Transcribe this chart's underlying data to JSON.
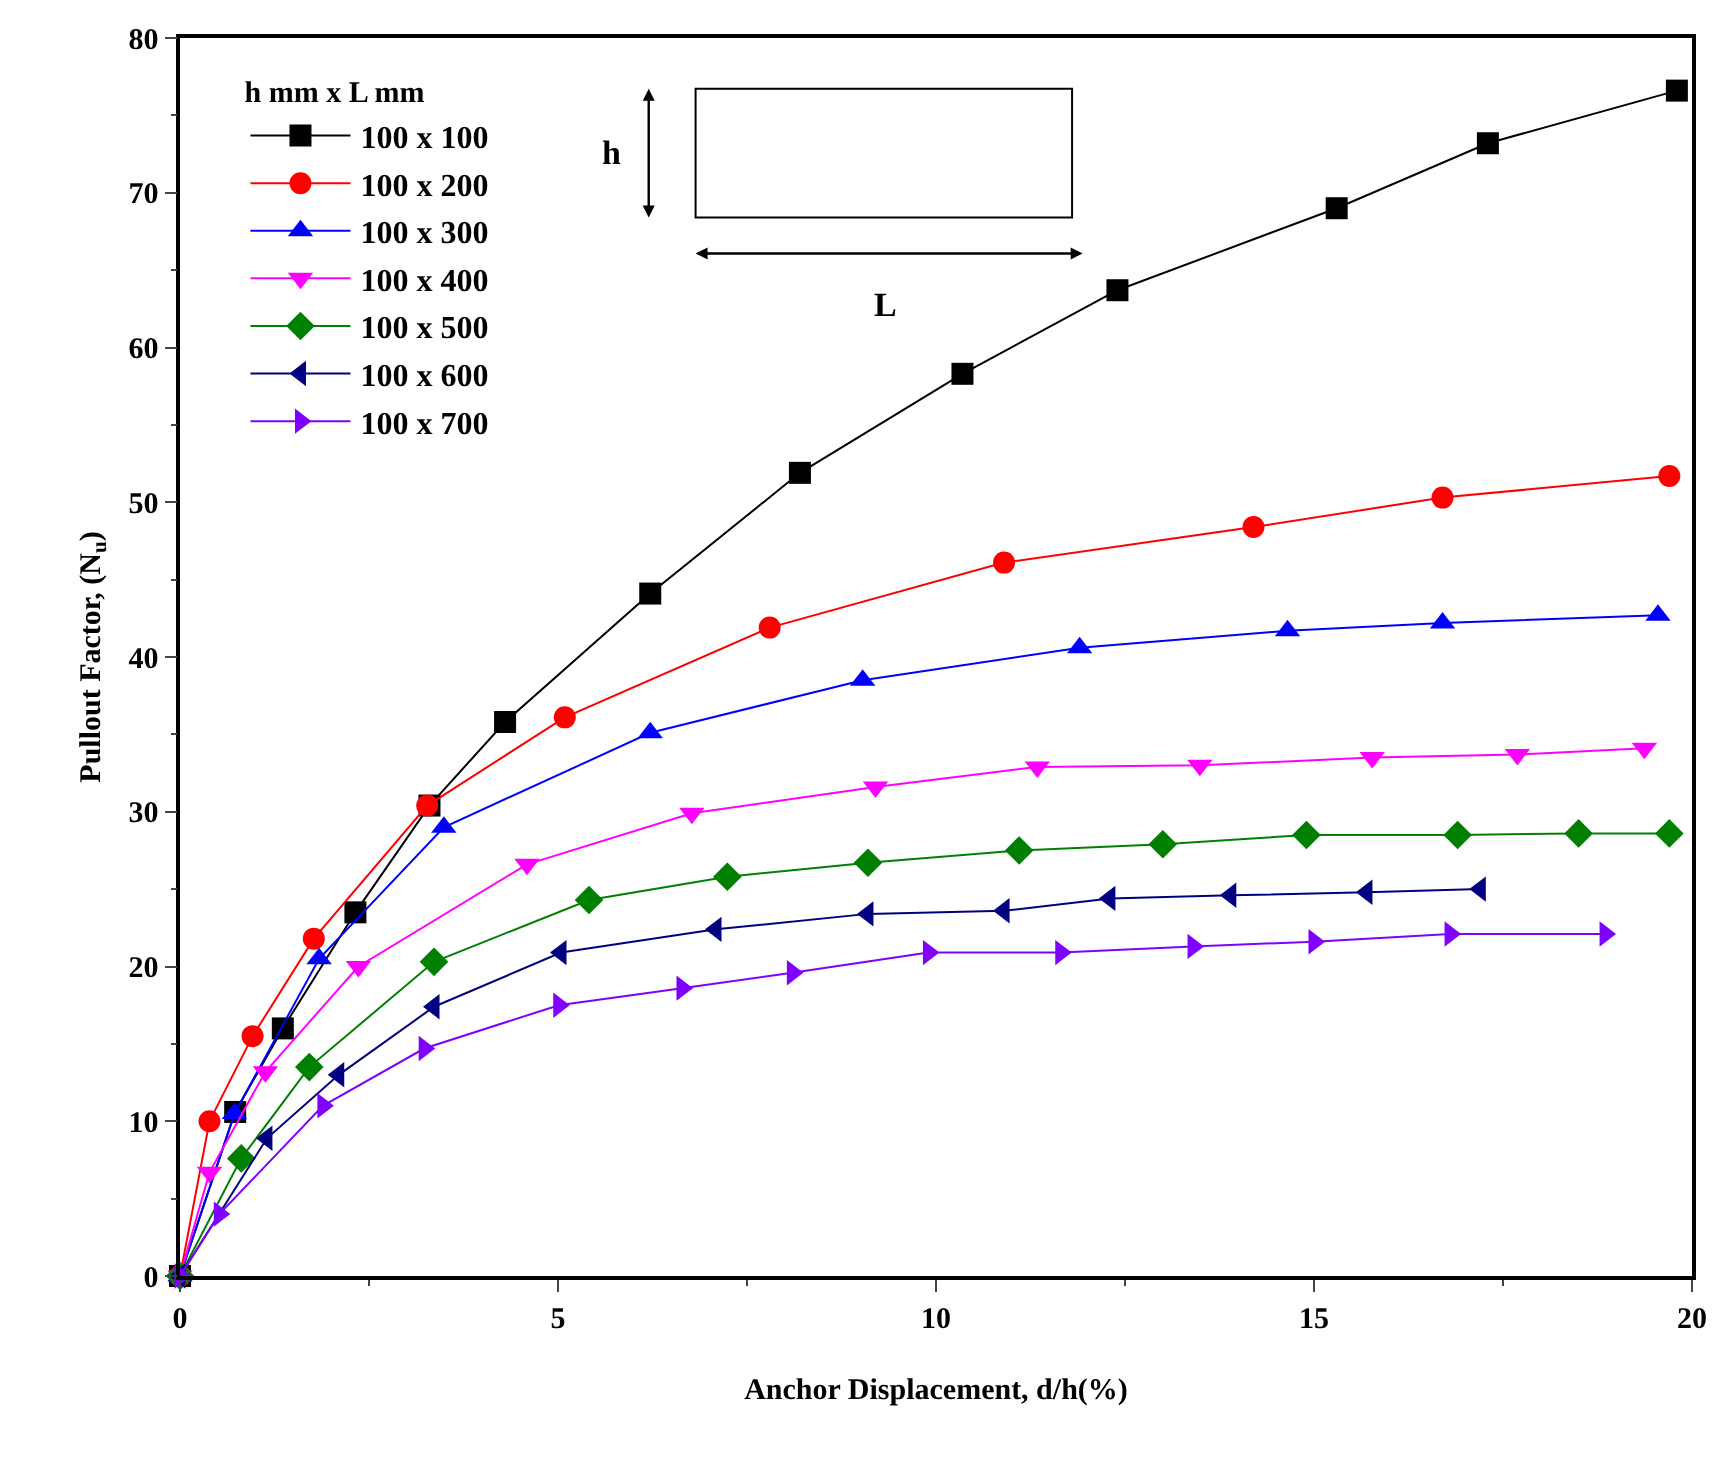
{
  "chart_data": {
    "type": "line",
    "xlabel": "Anchor Displacement, d/h(%)",
    "ylabel": "Pullout Factor, (N$_{u}$)",
    "legend_title": "h mm x L mm",
    "legend": "top left",
    "xlim": [
      0,
      20
    ],
    "xticks": [
      0,
      5,
      10,
      15,
      20
    ],
    "ylim": [
      0,
      80
    ],
    "yticks": [
      0,
      10,
      20,
      30,
      40,
      50,
      60,
      70,
      80
    ],
    "annotations": [
      "h",
      "L"
    ],
    "series": [
      {
        "name": "100 x 100",
        "color": "#000000",
        "marker": "square",
        "x": [
          0,
          0.73,
          1.36,
          2.32,
          3.3,
          4.3,
          6.22,
          8.2,
          10.35,
          12.4,
          15.3,
          17.3,
          19.8
        ],
        "values": [
          0,
          10.6,
          16.0,
          23.5,
          30.4,
          35.8,
          44.1,
          51.9,
          58.3,
          63.7,
          69.0,
          73.2,
          76.6
        ]
      },
      {
        "name": "100 x 200",
        "color": "#ff0000",
        "marker": "circle",
        "x": [
          0,
          0.39,
          0.96,
          1.77,
          3.27,
          5.09,
          7.8,
          10.9,
          14.2,
          16.7,
          19.7
        ],
        "values": [
          0,
          10.0,
          15.5,
          21.8,
          30.4,
          36.1,
          41.9,
          46.1,
          48.4,
          50.3,
          51.7
        ]
      },
      {
        "name": "100 x 300",
        "color": "#0000ff",
        "marker": "triangle",
        "x": [
          0,
          0.72,
          1.84,
          3.49,
          6.22,
          9.03,
          11.9,
          14.65,
          16.7,
          19.55
        ],
        "values": [
          0,
          10.5,
          20.5,
          29.0,
          35.1,
          38.5,
          40.6,
          41.7,
          42.2,
          42.7
        ]
      },
      {
        "name": "100 x 400",
        "color": "#ff00ff",
        "marker": "triangle-down",
        "x": [
          0,
          0.39,
          1.13,
          2.36,
          4.59,
          6.77,
          9.2,
          11.34,
          13.49,
          15.77,
          17.69,
          19.37
        ],
        "values": [
          0,
          6.7,
          13.2,
          20.0,
          26.6,
          29.9,
          31.6,
          32.9,
          33.0,
          33.5,
          33.7,
          34.1
        ]
      },
      {
        "name": "100 x 500",
        "color": "#008000",
        "marker": "diamond",
        "x": [
          0,
          0.81,
          1.71,
          3.36,
          5.41,
          7.24,
          9.1,
          11.1,
          13.0,
          14.9,
          16.9,
          18.5,
          19.7
        ],
        "values": [
          0,
          7.6,
          13.5,
          20.3,
          24.3,
          25.8,
          26.7,
          27.5,
          27.9,
          28.5,
          28.5,
          28.6,
          28.6
        ]
      },
      {
        "name": "100 x 600",
        "color": "#000080",
        "marker": "triangle-left",
        "x": [
          0,
          1.15,
          2.1,
          3.36,
          5.04,
          7.09,
          9.1,
          10.9,
          12.3,
          13.9,
          15.7,
          17.2
        ],
        "values": [
          0,
          8.9,
          13.0,
          17.4,
          20.9,
          22.4,
          23.4,
          23.6,
          24.4,
          24.6,
          24.8,
          25.0
        ]
      },
      {
        "name": "100 x 700",
        "color": "#8000ff",
        "marker": "triangle-right",
        "x": [
          0,
          0.52,
          1.89,
          3.23,
          5.01,
          6.64,
          8.1,
          9.9,
          11.65,
          13.4,
          15.0,
          16.8,
          18.85
        ],
        "values": [
          0,
          4.0,
          11.0,
          14.7,
          17.5,
          18.6,
          19.6,
          20.9,
          20.9,
          21.3,
          21.6,
          22.1,
          22.1
        ]
      }
    ]
  }
}
